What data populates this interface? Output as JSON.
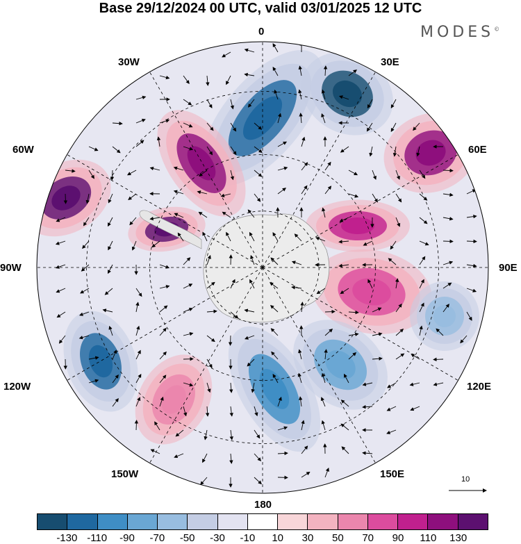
{
  "title": "Base 29/12/2024 00 UTC, valid 03/01/2025 12 UTC",
  "brand": "MODES",
  "brand_mark": "©",
  "longitude_labels": {
    "lon_0": "0",
    "lon_30e": "30E",
    "lon_60e": "60E",
    "lon_90e": "90E",
    "lon_120e": "120E",
    "lon_150e": "150E",
    "lon_180": "180",
    "lon_150w": "150W",
    "lon_120w": "120W",
    "lon_90w": "90W",
    "lon_60w": "60W",
    "lon_30w": "30W"
  },
  "wind_reference": {
    "label": "10"
  },
  "colorbar": {
    "colors": [
      "#174d70",
      "#1f68a0",
      "#3f8ec5",
      "#6aa7d4",
      "#98bde0",
      "#c4cde4",
      "#e3e3f1",
      "#ffffff",
      "#f8d6d9",
      "#f3b3c0",
      "#eb86ad",
      "#dc4c9e",
      "#c0208e",
      "#8e0f7d",
      "#5c1070"
    ],
    "tick_labels": [
      "-130",
      "-110",
      "-90",
      "-70",
      "-50",
      "-30",
      "-10",
      "10",
      "30",
      "50",
      "70",
      "90",
      "110",
      "130"
    ]
  },
  "projection": "south-polar-stereographic",
  "anomaly_features": [
    {
      "sign": "neg",
      "level": -110,
      "color": "#1f68a0"
    },
    {
      "sign": "pos",
      "level": 110,
      "color": "#8e0f7d"
    },
    {
      "sign": "pos",
      "level": 130,
      "color": "#5c1070"
    },
    {
      "sign": "neg",
      "level": -130,
      "color": "#174d70"
    },
    {
      "sign": "pos",
      "level": 90,
      "color": "#c0208e"
    },
    {
      "sign": "pos",
      "level": 70,
      "color": "#dc4c9e"
    },
    {
      "sign": "neg",
      "level": -70,
      "color": "#6aa7d4"
    },
    {
      "sign": "neg",
      "level": -90,
      "color": "#3f8ec5"
    },
    {
      "sign": "pos",
      "level": 50,
      "color": "#eb86ad"
    },
    {
      "sign": "neg",
      "level": -50,
      "color": "#98bde0"
    }
  ]
}
